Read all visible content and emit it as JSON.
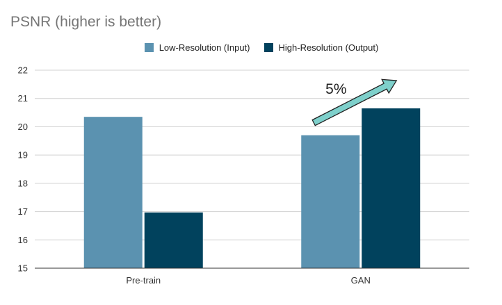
{
  "chart_data": {
    "type": "bar",
    "title": "PSNR (higher is better)",
    "xlabel": "",
    "ylabel": "",
    "categories": [
      "Pre-train",
      "GAN"
    ],
    "series": [
      {
        "name": "Low-Resolution (Input)",
        "values": [
          20.35,
          19.7
        ],
        "color": "#5b92b0"
      },
      {
        "name": "High-Resolution (Output)",
        "values": [
          16.97,
          20.65
        ],
        "color": "#01425d"
      }
    ],
    "ylim": [
      15,
      22
    ],
    "yticks": [
      15,
      16,
      17,
      18,
      19,
      20,
      21,
      22
    ],
    "grid": true,
    "legend_position": "top",
    "annotation": {
      "text": "5%",
      "category": "GAN",
      "arrow_color": "#7ed0cb"
    }
  }
}
